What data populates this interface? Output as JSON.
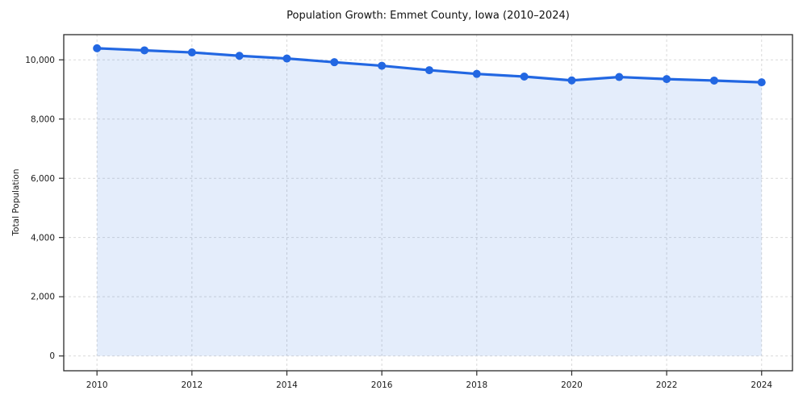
{
  "chart_data": {
    "type": "area",
    "title": "Population Growth: Emmet County, Iowa (2010–2024)",
    "xlabel": "",
    "ylabel": "Total Population",
    "x": [
      2010,
      2011,
      2012,
      2013,
      2014,
      2015,
      2016,
      2017,
      2018,
      2019,
      2020,
      2021,
      2022,
      2023,
      2024
    ],
    "series": [
      {
        "name": "Total Population",
        "values": [
          10390,
          10320,
          10250,
          10135,
          10045,
          9920,
          9800,
          9650,
          9525,
          9435,
          9305,
          9420,
          9350,
          9300,
          9240
        ]
      }
    ],
    "xticks": [
      2010,
      2012,
      2014,
      2016,
      2018,
      2020,
      2022,
      2024
    ],
    "yticks": [
      0,
      2000,
      4000,
      6000,
      8000,
      10000
    ],
    "xlim": [
      2009.3,
      2024.65
    ],
    "ylim": [
      -500,
      10850
    ],
    "grid": true,
    "grid_style": "dashed",
    "legend": false,
    "marker": "circle",
    "colors": {
      "line": "#2267e2",
      "marker": "#2267e2",
      "fill": "rgba(34, 103, 226, 0.12)",
      "grid": "#d9d9d9",
      "spine": "#2b2b2b",
      "tick_text": "#1a1a1a",
      "background": "#ffffff"
    }
  }
}
